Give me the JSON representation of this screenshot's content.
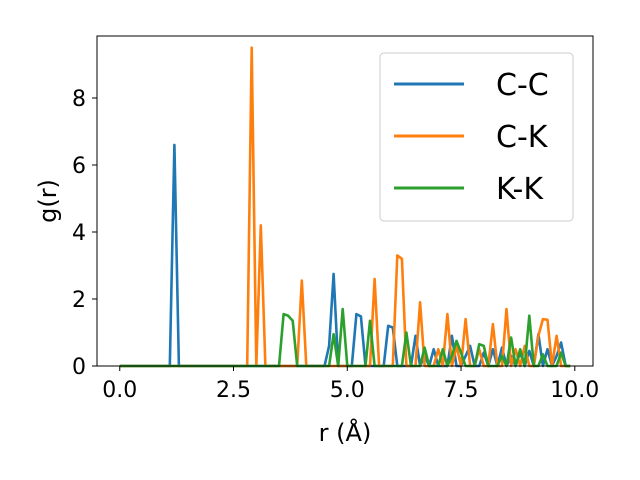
{
  "chart_data": {
    "type": "line",
    "xlabel": "r (Å)",
    "ylabel": "g(r)",
    "xlim": [
      -0.5,
      10.4
    ],
    "ylim": [
      0,
      9.85
    ],
    "xticks": [
      0.0,
      2.5,
      5.0,
      7.5,
      10.0
    ],
    "xtick_labels": [
      "0.0",
      "2.5",
      "5.0",
      "7.5",
      "10.0"
    ],
    "yticks": [
      0,
      2,
      4,
      6,
      8
    ],
    "ytick_labels": [
      "0",
      "2",
      "4",
      "6",
      "8"
    ],
    "grid": false,
    "legend_position": "top-right",
    "series": [
      {
        "name": "C-C",
        "color": "#1f77b4",
        "x": [
          0.0,
          1.1,
          1.2,
          1.3,
          4.5,
          4.6,
          4.7,
          4.8,
          5.1,
          5.2,
          5.3,
          5.4,
          5.5,
          5.8,
          5.9,
          6.0,
          6.1,
          6.4,
          6.5,
          6.6,
          6.7,
          6.8,
          6.9,
          7.0,
          7.2,
          7.3,
          7.4,
          7.5,
          7.6,
          7.7,
          7.8,
          7.9,
          8.0,
          8.1,
          8.2,
          8.3,
          8.4,
          8.5,
          8.6,
          8.7,
          8.8,
          8.9,
          9.0,
          9.1,
          9.2,
          9.3,
          9.4,
          9.5,
          9.6,
          9.7,
          9.8,
          9.9
        ],
        "y": [
          0.0,
          0.0,
          6.6,
          0.0,
          0.0,
          0.6,
          2.75,
          0.0,
          0.0,
          1.55,
          1.48,
          0.0,
          0.0,
          0.0,
          1.2,
          1.15,
          0.0,
          0.0,
          0.9,
          0.0,
          0.3,
          0.0,
          0.5,
          0.0,
          0.0,
          0.9,
          0.0,
          0.0,
          0.3,
          0.6,
          0.0,
          0.0,
          0.4,
          0.0,
          0.5,
          0.0,
          0.55,
          0.0,
          0.3,
          0.0,
          0.4,
          0.0,
          0.45,
          0.0,
          0.95,
          0.0,
          0.5,
          0.0,
          0.3,
          0.7,
          0.0,
          0.0
        ]
      },
      {
        "name": "C-K",
        "color": "#ff7f0e",
        "x": [
          0.0,
          2.8,
          2.9,
          3.0,
          3.1,
          3.2,
          3.9,
          4.0,
          4.1,
          5.5,
          5.6,
          5.7,
          5.9,
          6.0,
          6.1,
          6.2,
          6.3,
          6.5,
          6.6,
          6.7,
          6.9,
          7.0,
          7.1,
          7.2,
          7.3,
          7.4,
          7.5,
          7.6,
          7.7,
          7.8,
          7.9,
          8.0,
          8.1,
          8.2,
          8.3,
          8.4,
          8.5,
          8.6,
          8.7,
          8.8,
          8.9,
          9.0,
          9.1,
          9.2,
          9.3,
          9.4,
          9.5,
          9.6,
          9.7,
          9.8,
          9.9
        ],
        "y": [
          0.0,
          0.0,
          9.5,
          0.0,
          4.2,
          0.0,
          0.0,
          2.55,
          0.0,
          0.0,
          2.6,
          0.0,
          0.0,
          0.0,
          3.3,
          3.2,
          0.0,
          0.0,
          1.9,
          0.0,
          0.0,
          0.5,
          0.0,
          1.55,
          0.0,
          0.6,
          0.0,
          1.4,
          0.0,
          0.0,
          0.5,
          0.0,
          0.0,
          1.25,
          0.0,
          0.0,
          1.7,
          0.0,
          0.5,
          0.0,
          0.6,
          0.0,
          0.0,
          0.9,
          1.4,
          1.38,
          0.0,
          0.9,
          0.0,
          0.0,
          0.0
        ]
      },
      {
        "name": "K-K",
        "color": "#2ca02c",
        "x": [
          0.0,
          3.5,
          3.6,
          3.7,
          3.8,
          3.9,
          4.5,
          4.6,
          4.7,
          4.8,
          4.9,
          5.0,
          5.4,
          5.5,
          5.6,
          6.2,
          6.3,
          6.4,
          6.6,
          6.7,
          6.8,
          7.0,
          7.1,
          7.2,
          7.3,
          7.4,
          7.5,
          7.6,
          7.8,
          7.9,
          8.0,
          8.1,
          8.3,
          8.4,
          8.5,
          8.6,
          8.7,
          8.8,
          8.9,
          9.0,
          9.1,
          9.2,
          9.3,
          9.4,
          9.5,
          9.6,
          9.7,
          9.8,
          9.9
        ],
        "y": [
          0.0,
          0.0,
          1.55,
          1.5,
          1.35,
          0.0,
          0.0,
          0.0,
          0.95,
          0.0,
          1.7,
          0.0,
          0.0,
          1.35,
          0.0,
          0.0,
          1.0,
          0.0,
          0.0,
          0.55,
          0.0,
          0.0,
          0.5,
          0.0,
          0.3,
          0.75,
          0.4,
          0.0,
          0.0,
          0.65,
          0.6,
          0.0,
          0.0,
          0.3,
          0.0,
          0.85,
          0.0,
          0.5,
          0.0,
          1.5,
          0.0,
          0.0,
          0.35,
          0.0,
          0.0,
          0.0,
          0.4,
          0.0,
          0.0
        ]
      }
    ]
  }
}
